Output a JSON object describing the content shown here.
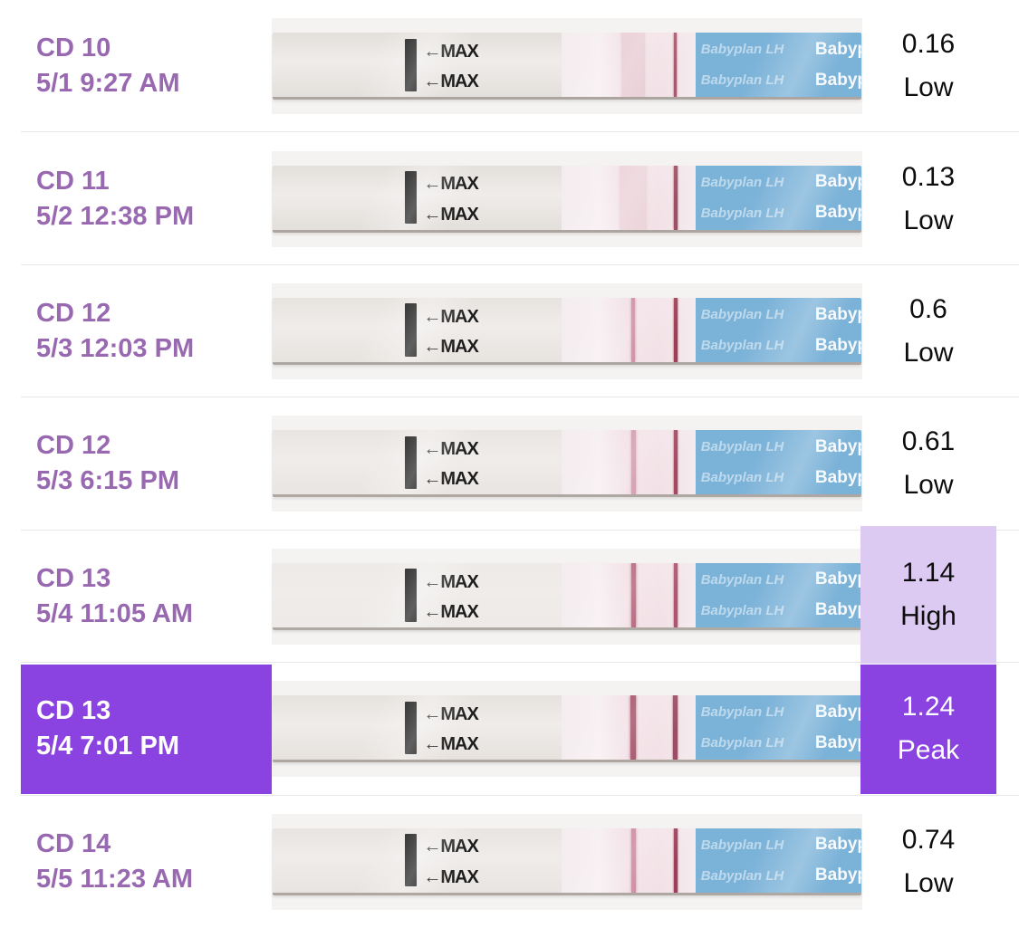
{
  "colors": {
    "purple_text": "#9868b0",
    "peak_bg": "#8a42e1",
    "high_bg": "#dccaf3",
    "divider": "#e7e5e8",
    "value_text": "#0d0d0d",
    "white_text": "#ffffff",
    "strip_blue": "#7bb2d8"
  },
  "strip": {
    "max_label": "←MAX",
    "brand_watermark": "Babyplan LH",
    "brand_edge": "Babyp"
  },
  "rows": [
    {
      "cd": "CD 10",
      "datetime": "5/1 9:27 AM",
      "value": "0.16",
      "level": "Low",
      "highlight": "none",
      "strip": {
        "body": "#e3dfdb",
        "test_line_color": "rgba(223,187,197,0.55)",
        "test_line_width": 26,
        "control_line_color": "#a7596d",
        "control_line_width": 3
      }
    },
    {
      "cd": "CD 11",
      "datetime": "5/2 12:38 PM",
      "value": "0.13",
      "level": "Low",
      "highlight": "none",
      "strip": {
        "body": "#e3dfdb",
        "test_line_color": "rgba(228,196,204,0.55)",
        "test_line_width": 30,
        "control_line_color": "#9d4f63",
        "control_line_width": 4
      }
    },
    {
      "cd": "CD 12",
      "datetime": "5/3 12:03 PM",
      "value": "0.6",
      "level": "Low",
      "highlight": "none",
      "strip": {
        "body": "#e7e3df",
        "test_line_color": "#c8849c",
        "test_line_width": 4,
        "control_line_color": "#9e3d56",
        "control_line_width": 4
      }
    },
    {
      "cd": "CD 12",
      "datetime": "5/3 6:15 PM",
      "value": "0.61",
      "level": "Low",
      "highlight": "none",
      "strip": {
        "body": "#e9e5e2",
        "test_line_color": "#d293a8",
        "test_line_width": 5,
        "control_line_color": "#a34a61",
        "control_line_width": 4
      }
    },
    {
      "cd": "CD 13",
      "datetime": "5/4 11:05 AM",
      "value": "1.14",
      "level": "High",
      "highlight": "high",
      "strip": {
        "body": "#edeae7",
        "test_line_color": "#b25a74",
        "test_line_width": 5,
        "control_line_color": "#ad5670",
        "control_line_width": 4
      }
    },
    {
      "cd": "CD 13",
      "datetime": "5/4 7:01 PM",
      "value": "1.24",
      "level": "Peak",
      "highlight": "peak",
      "strip": {
        "body": "#e6e2de",
        "test_line_color": "#9f4660",
        "test_line_width": 6,
        "control_line_color": "#a04a64",
        "control_line_width": 5
      }
    },
    {
      "cd": "CD 14",
      "datetime": "5/5 11:23 AM",
      "value": "0.74",
      "level": "Low",
      "highlight": "none",
      "strip": {
        "body": "#e8e4e1",
        "test_line_color": "#ca7f98",
        "test_line_width": 5,
        "control_line_color": "#9c3f58",
        "control_line_width": 4
      }
    }
  ]
}
